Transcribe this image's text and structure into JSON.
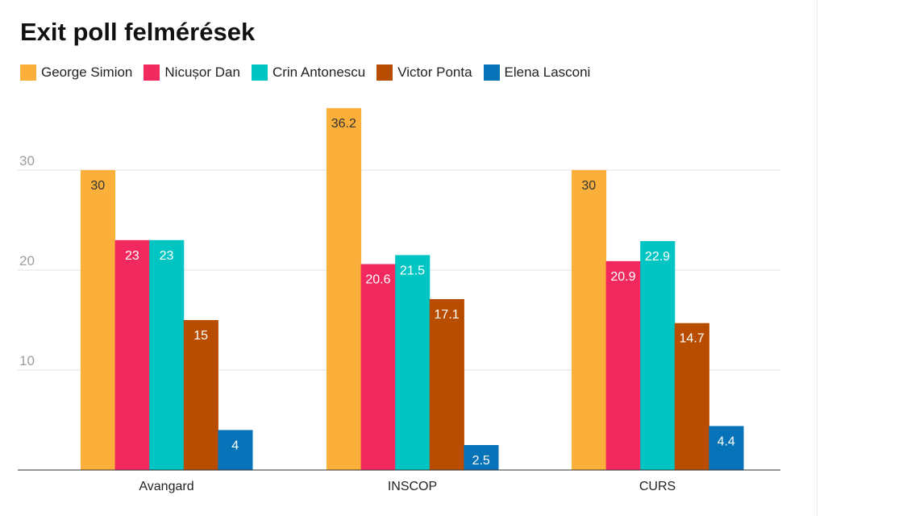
{
  "title": "Exit poll felmérések",
  "colors": {
    "George Simion": "#FBB03B",
    "Nicușor Dan": "#F2295F",
    "Crin Antonescu": "#00C5C3",
    "Victor Ponta": "#B84D00",
    "Elena Lasconi": "#0672B8"
  },
  "chart_data": {
    "type": "bar",
    "title": "Exit poll felmérések",
    "xlabel": "",
    "ylabel": "",
    "ylim": [
      0,
      36.2
    ],
    "yticks": [
      10,
      20,
      30
    ],
    "grid": true,
    "legend_position": "top-left",
    "categories": [
      "Avangard",
      "INSCOP",
      "CURS"
    ],
    "series": [
      {
        "name": "George Simion",
        "values": [
          30,
          36.2,
          30
        ],
        "labels": [
          "30",
          "36.2",
          "30"
        ]
      },
      {
        "name": "Nicușor Dan",
        "values": [
          23,
          20.6,
          20.9
        ],
        "labels": [
          "23",
          "20.6",
          "20.9"
        ]
      },
      {
        "name": "Crin Antonescu",
        "values": [
          23,
          21.5,
          22.9
        ],
        "labels": [
          "23",
          "21.5",
          "22.9"
        ]
      },
      {
        "name": "Victor Ponta",
        "values": [
          15,
          17.1,
          14.7
        ],
        "labels": [
          "15",
          "17.1",
          "14.7"
        ]
      },
      {
        "name": "Elena Lasconi",
        "values": [
          4,
          2.5,
          4.4
        ],
        "labels": [
          "4",
          "2.5",
          "4.4"
        ]
      }
    ]
  }
}
